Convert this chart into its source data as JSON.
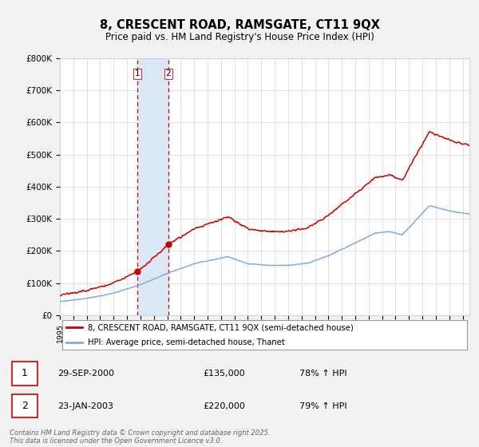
{
  "title": "8, CRESCENT ROAD, RAMSGATE, CT11 9QX",
  "subtitle": "Price paid vs. HM Land Registry's House Price Index (HPI)",
  "ylim": [
    0,
    800000
  ],
  "yticks": [
    0,
    100000,
    200000,
    300000,
    400000,
    500000,
    600000,
    700000,
    800000
  ],
  "ytick_labels": [
    "£0",
    "£100K",
    "£200K",
    "£300K",
    "£400K",
    "£500K",
    "£600K",
    "£700K",
    "£800K"
  ],
  "background_color": "#f2f2f2",
  "plot_bg_color": "#ffffff",
  "red_line_color": "#cc0000",
  "blue_line_color": "#7aace0",
  "shade_color": "#dae8f5",
  "legend_label_red": "8, CRESCENT ROAD, RAMSGATE, CT11 9QX (semi-detached house)",
  "legend_label_blue": "HPI: Average price, semi-detached house, Thanet",
  "transaction1_date": "29-SEP-2000",
  "transaction1_price": "£135,000",
  "transaction1_hpi": "78% ↑ HPI",
  "transaction2_date": "23-JAN-2003",
  "transaction2_price": "£220,000",
  "transaction2_hpi": "79% ↑ HPI",
  "footnote": "Contains HM Land Registry data © Crown copyright and database right 2025.\nThis data is licensed under the Open Government Licence v3.0.",
  "transaction1_x": 2000.75,
  "transaction2_x": 2003.07,
  "shade_x1": 2000.75,
  "shade_x2": 2003.07,
  "xmin": 1995,
  "xmax": 2025.5
}
